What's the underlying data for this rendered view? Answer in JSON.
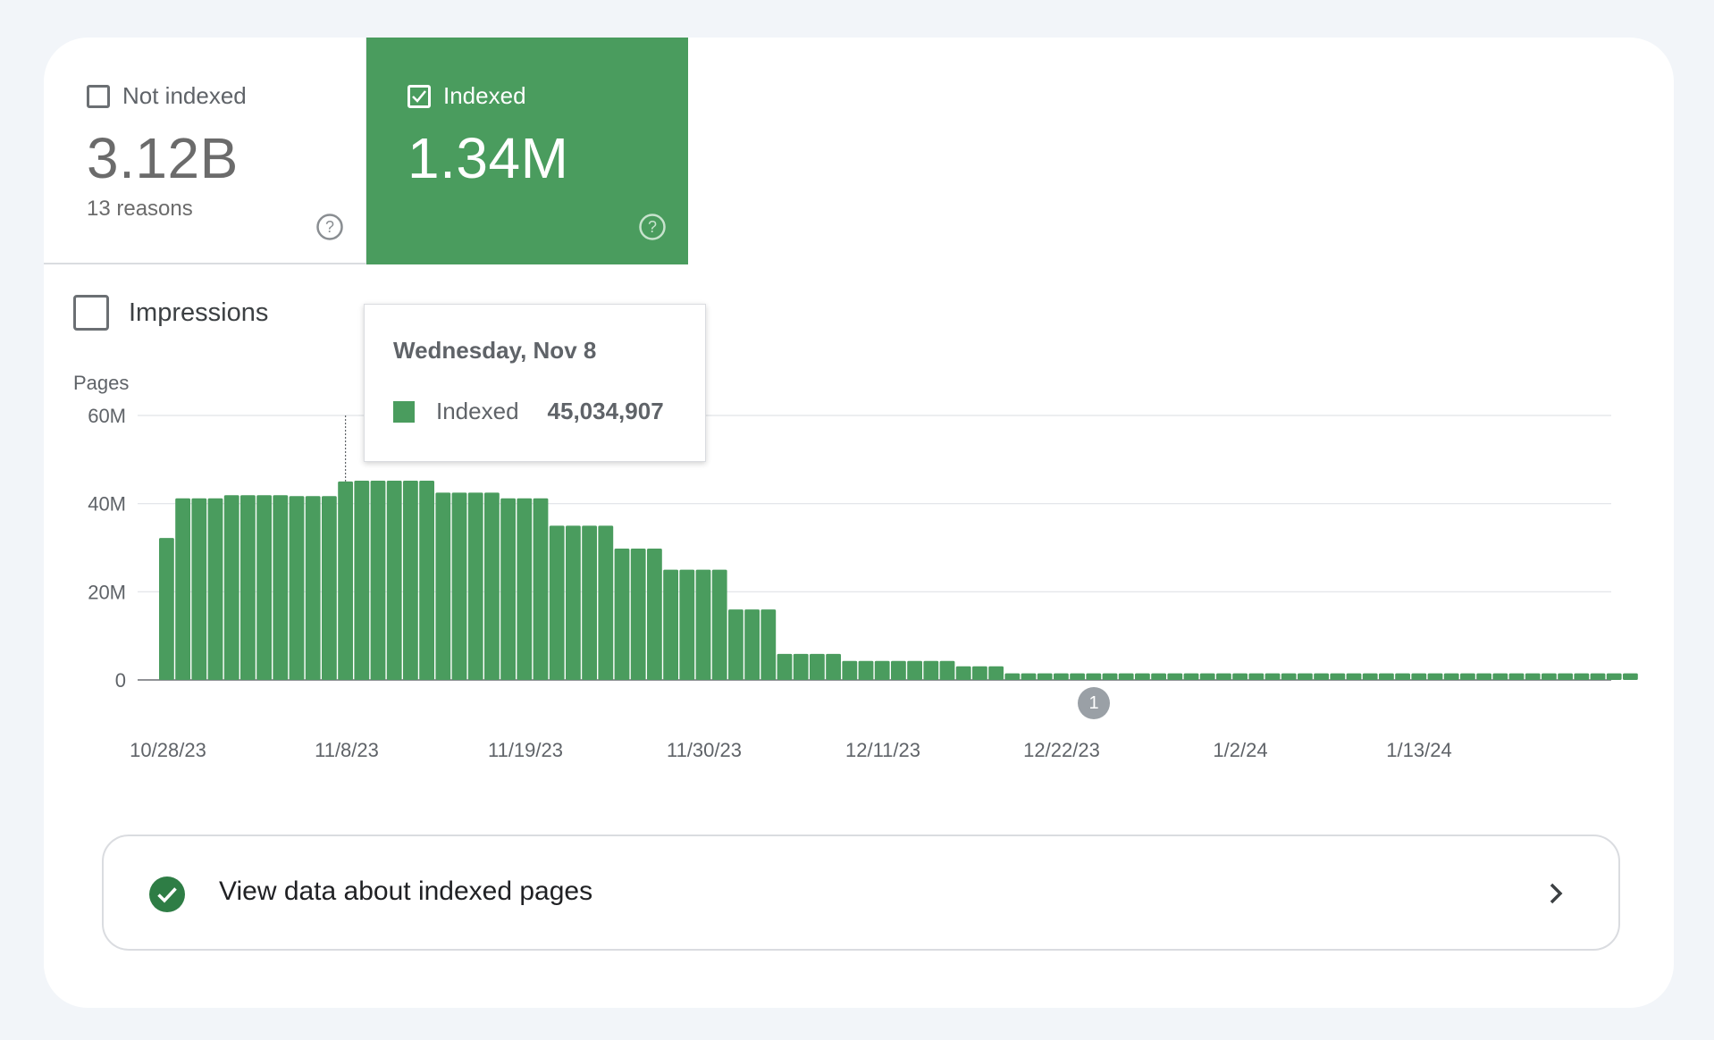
{
  "tiles": {
    "not_indexed": {
      "label": "Not indexed",
      "value": "3.12B",
      "sub": "13 reasons",
      "checked": false
    },
    "indexed": {
      "label": "Indexed",
      "value": "1.34M",
      "checked": true,
      "color": "#4a9c5e"
    }
  },
  "impressions": {
    "label": "Impressions",
    "checked": false
  },
  "tooltip": {
    "date": "Wednesday, Nov 8",
    "series": "Indexed",
    "value": "45,034,907"
  },
  "annotation": {
    "label": "1"
  },
  "view_button": {
    "label": "View data about indexed pages"
  },
  "chart_data": {
    "type": "bar",
    "ylabel": "Pages",
    "ylim": [
      0,
      60000000
    ],
    "yticks": [
      {
        "value": 0,
        "label": "0"
      },
      {
        "value": 20000000,
        "label": "20M"
      },
      {
        "value": 40000000,
        "label": "40M"
      },
      {
        "value": 60000000,
        "label": "60M"
      }
    ],
    "xticks": [
      "10/28/23",
      "11/8/23",
      "11/19/23",
      "11/30/23",
      "12/11/23",
      "12/22/23",
      "1/2/24",
      "1/13/24"
    ],
    "grid": true,
    "bar_color": "#4a9c5e",
    "highlight_index": 11,
    "series": [
      {
        "name": "Indexed",
        "values": [
          32200000,
          41200000,
          41200000,
          41200000,
          41900000,
          41900000,
          41900000,
          41900000,
          41700000,
          41700000,
          41700000,
          45034907,
          45200000,
          45200000,
          45200000,
          45200000,
          45200000,
          42500000,
          42500000,
          42500000,
          42500000,
          41200000,
          41200000,
          41200000,
          35000000,
          35000000,
          35000000,
          35000000,
          29800000,
          29800000,
          29800000,
          25000000,
          25000000,
          25000000,
          25000000,
          16000000,
          16000000,
          16000000,
          5900000,
          5900000,
          5900000,
          5900000,
          4300000,
          4300000,
          4300000,
          4300000,
          4300000,
          4300000,
          4300000,
          3100000,
          3100000,
          3100000,
          1500000,
          1500000,
          1500000,
          1500000,
          1500000,
          1500000,
          1500000,
          1500000,
          1500000,
          1500000,
          1500000,
          1500000,
          1500000,
          1500000,
          1500000,
          1500000,
          1500000,
          1500000,
          1500000,
          1500000,
          1500000,
          1500000,
          1500000,
          1500000,
          1500000,
          1500000,
          1500000,
          1500000,
          1500000,
          1500000,
          1500000,
          1500000,
          1500000,
          1500000,
          1500000,
          1500000,
          1500000,
          1500000,
          1500000
        ]
      }
    ]
  }
}
